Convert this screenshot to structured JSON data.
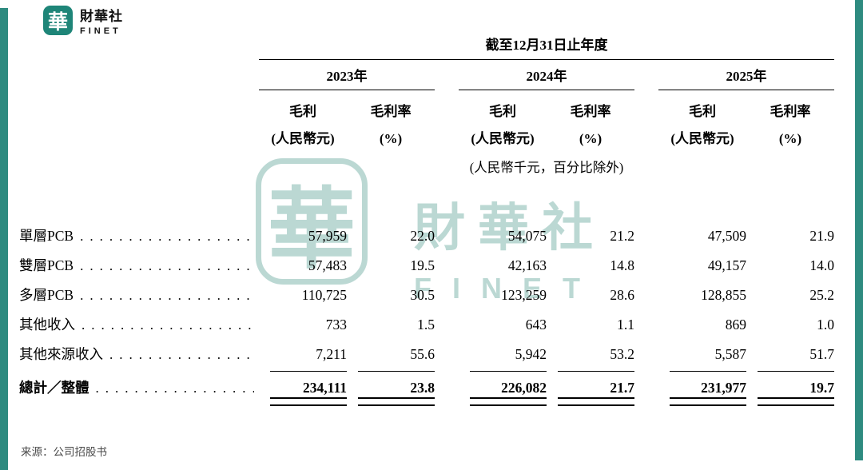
{
  "brand": {
    "logo_glyph": "華",
    "name_cn": "財華社",
    "name_en": "FINET"
  },
  "watermark": {
    "glyph": "華",
    "name_cn": "財華社",
    "name_en": "FINET"
  },
  "table": {
    "period_header": "截至12月31日止年度",
    "unit_note": "(人民幣千元，百分比除外)",
    "year_groups": [
      {
        "year": "2023年",
        "cols": [
          {
            "title": "毛利",
            "unit": "(人民幣元)"
          },
          {
            "title": "毛利率",
            "unit": "(%)"
          }
        ]
      },
      {
        "year": "2024年",
        "cols": [
          {
            "title": "毛利",
            "unit": "(人民幣元)"
          },
          {
            "title": "毛利率",
            "unit": "(%)"
          }
        ]
      },
      {
        "year": "2025年",
        "cols": [
          {
            "title": "毛利",
            "unit": "(人民幣元)"
          },
          {
            "title": "毛利率",
            "unit": "(%)"
          }
        ]
      }
    ],
    "rows": [
      {
        "label": "單層PCB",
        "values": [
          "57,959",
          "22.0",
          "54,075",
          "21.2",
          "47,509",
          "21.9"
        ]
      },
      {
        "label": "雙層PCB",
        "values": [
          "57,483",
          "19.5",
          "42,163",
          "14.8",
          "49,157",
          "14.0"
        ]
      },
      {
        "label": "多層PCB",
        "values": [
          "110,725",
          "30.5",
          "123,259",
          "28.6",
          "128,855",
          "25.2"
        ]
      },
      {
        "label": "其他收入",
        "values": [
          "733",
          "1.5",
          "643",
          "1.1",
          "869",
          "1.0"
        ]
      },
      {
        "label": "其他來源收入",
        "values": [
          "7,211",
          "55.6",
          "5,942",
          "53.2",
          "5,587",
          "51.7"
        ]
      }
    ],
    "total": {
      "label": "總計／整體",
      "values": [
        "234,111",
        "23.8",
        "226,082",
        "21.7",
        "231,977",
        "19.7"
      ]
    }
  },
  "footer": {
    "source": "来源：公司招股书"
  },
  "colors": {
    "accent": "#2E8B80"
  }
}
